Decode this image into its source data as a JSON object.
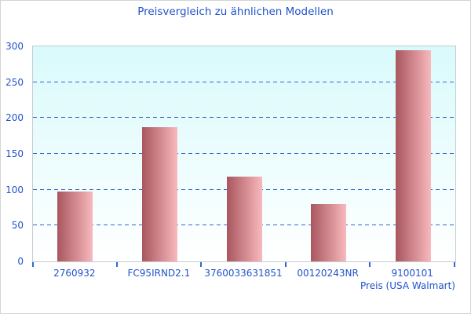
{
  "title": "Preisvergleich zu ähnlichen Modellen",
  "chart_data": {
    "type": "bar",
    "title": "Preisvergleich zu ähnlichen Modellen",
    "categories": [
      "2760932",
      "FC95IRND2.1",
      "3760033631851",
      "00120243NR",
      "9100101"
    ],
    "values": [
      98,
      187,
      118,
      80,
      294
    ],
    "xlabel": "Preis (USA Walmart)",
    "ylabel": "",
    "ylim": [
      0,
      300
    ],
    "yticks": [
      0,
      50,
      100,
      150,
      200,
      250,
      300
    ],
    "grid": "horizontal-dashed",
    "legend": "none",
    "bar_style": "horizontal gradient dark-red to light-pink",
    "plot_background": "vertical gradient light-cyan to white"
  },
  "colors": {
    "text_blue": "#2053cc",
    "grid_blue": "#3366cc",
    "plot_border": "#c5ccd3",
    "outer_border": "#d4d4d4",
    "plot_bg_top": "#d9fafb",
    "plot_bg_bottom": "#ffffff",
    "bar_gradient_dark": "#a9565e",
    "bar_gradient_light": "#f8b9bd"
  }
}
